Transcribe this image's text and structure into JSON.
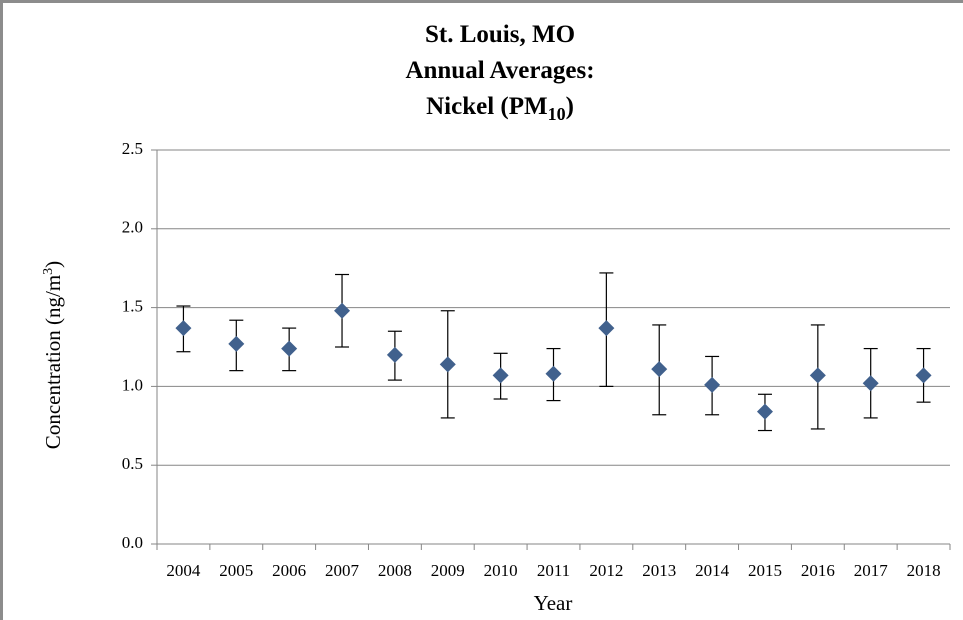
{
  "chart_data": {
    "type": "errorbar",
    "title": [
      "St. Louis, MO",
      "Annual Averages:",
      {
        "text": "Nickel (PM",
        "sub": "10",
        "tail": ")"
      }
    ],
    "x_label": "Year",
    "y_label": {
      "text": "Concentration (ng/m",
      "sup": "3",
      "tail": ")"
    },
    "categories": [
      "2004",
      "2005",
      "2006",
      "2007",
      "2008",
      "2009",
      "2010",
      "2011",
      "2012",
      "2013",
      "2014",
      "2015",
      "2016",
      "2017",
      "2018"
    ],
    "values": [
      1.37,
      1.27,
      1.24,
      1.48,
      1.2,
      1.14,
      1.07,
      1.08,
      1.37,
      1.11,
      1.01,
      0.84,
      1.07,
      1.02,
      1.07
    ],
    "lower": [
      1.22,
      1.1,
      1.1,
      1.25,
      1.04,
      0.8,
      0.92,
      0.91,
      1.0,
      0.82,
      0.82,
      0.72,
      0.73,
      0.8,
      0.9
    ],
    "upper": [
      1.51,
      1.42,
      1.37,
      1.71,
      1.35,
      1.48,
      1.21,
      1.24,
      1.72,
      1.39,
      1.19,
      0.95,
      1.39,
      1.24,
      1.24
    ],
    "color": "#41618d",
    "ylim": [
      0,
      2.5
    ],
    "yticks": [
      {
        "value": 0,
        "label": "0.0"
      },
      {
        "value": 0.5,
        "label": "0.5"
      },
      {
        "value": 1,
        "label": "1.0"
      },
      {
        "value": 1.5,
        "label": "1.5"
      },
      {
        "value": 2,
        "label": "2.0"
      },
      {
        "value": 2.5,
        "label": "2.5"
      }
    ],
    "grid": true
  }
}
